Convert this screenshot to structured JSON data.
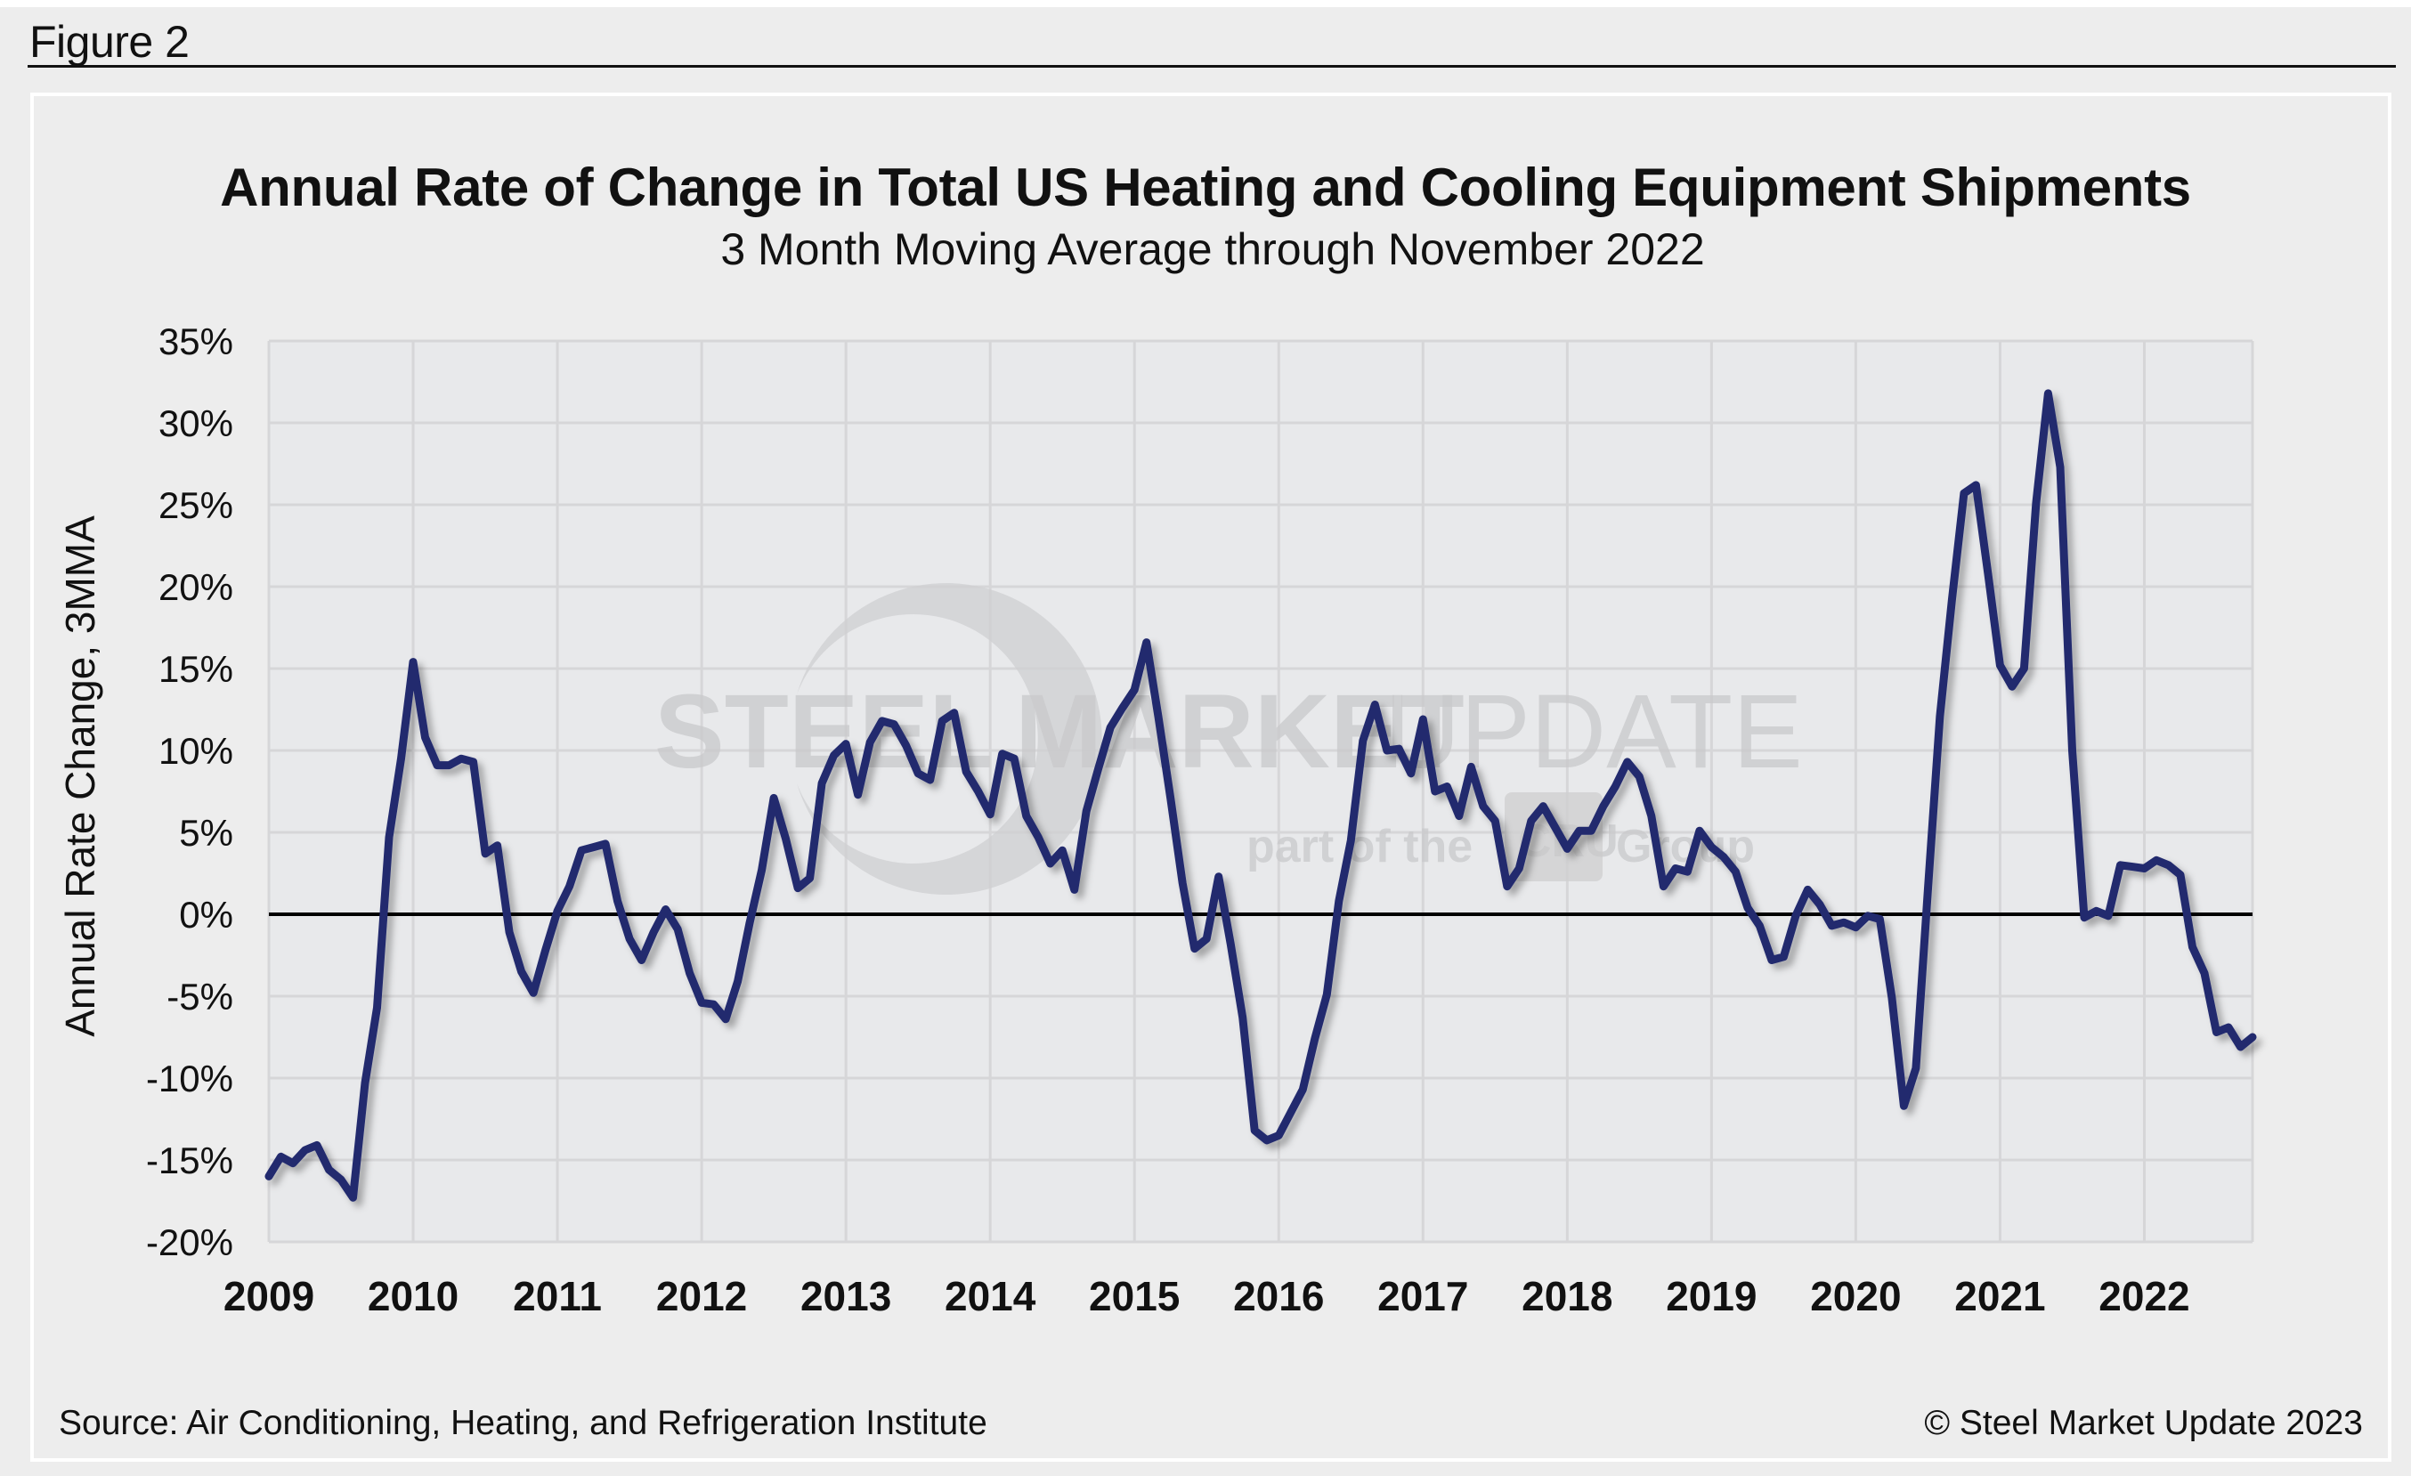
{
  "figure_label": "Figure 2",
  "watermark": {
    "brand_bold": "STEEL",
    "brand_bold2": "MARKET",
    "brand_light": "UPDATE",
    "tagline_pre": "part of the",
    "tagline_logo": "CRU",
    "tagline_post": "Group"
  },
  "footer": {
    "source": "Source: Air Conditioning, Heating, and Refrigeration Institute",
    "copyright": "© Steel Market Update 2023"
  },
  "colors": {
    "line": "#222a6e",
    "zero_line": "#000000",
    "grid": "#d6d6d8",
    "plot_bg": "#e8e9eb"
  },
  "chart_data": {
    "type": "line",
    "title": "Annual Rate of Change in Total US Heating and Cooling Equipment Shipments",
    "subtitle": "3 Month Moving Average through November 2022",
    "xlabel": "",
    "ylabel": "Annual Rate Change, 3MMA",
    "frequency": "monthly",
    "ylim": [
      -20,
      35
    ],
    "yticks": [
      35,
      30,
      25,
      20,
      15,
      10,
      5,
      0,
      -5,
      -10,
      -15,
      -20
    ],
    "ytick_labels": [
      "35%",
      "30%",
      "25%",
      "20%",
      "15%",
      "10%",
      "5%",
      "0%",
      "-5%",
      "-10%",
      "-15%",
      "-20%"
    ],
    "xlim": [
      0,
      165
    ],
    "xticks": [
      0,
      12,
      24,
      36,
      48,
      60,
      72,
      84,
      96,
      108,
      120,
      132,
      144,
      156
    ],
    "xtick_labels": [
      "2009",
      "2010",
      "2011",
      "2012",
      "2013",
      "2014",
      "2015",
      "2016",
      "2017",
      "2018",
      "2019",
      "2020",
      "2021",
      "2022"
    ],
    "grid": true,
    "reference_line": 0,
    "legend": "none",
    "series": [
      {
        "name": "Annual Rate of Change, 3MMA",
        "values": [
          -16.0,
          -14.8,
          -15.2,
          -14.4,
          -14.1,
          -15.6,
          -16.2,
          -17.3,
          -10.3,
          -5.7,
          4.7,
          9.5,
          15.4,
          10.8,
          9.1,
          9.1,
          9.5,
          9.3,
          3.7,
          4.2,
          -1.1,
          -3.5,
          -4.8,
          -2.2,
          0.2,
          1.7,
          3.9,
          4.1,
          4.3,
          0.8,
          -1.5,
          -2.8,
          -1.1,
          0.3,
          -0.9,
          -3.6,
          -5.4,
          -5.5,
          -6.4,
          -4.1,
          -0.5,
          2.7,
          7.1,
          4.6,
          1.6,
          2.2,
          8.0,
          9.7,
          10.4,
          7.3,
          10.5,
          11.8,
          11.6,
          10.3,
          8.6,
          8.2,
          11.8,
          12.3,
          8.7,
          7.5,
          6.1,
          9.8,
          9.5,
          6.0,
          4.7,
          3.1,
          3.9,
          1.5,
          6.3,
          8.9,
          11.4,
          12.6,
          13.7,
          16.6,
          12.0,
          7.1,
          1.9,
          -2.1,
          -1.5,
          2.3,
          -1.8,
          -6.3,
          -13.2,
          -13.8,
          -13.5,
          -12.1,
          -10.7,
          -7.6,
          -4.9,
          0.8,
          4.5,
          10.6,
          12.8,
          10.0,
          10.1,
          8.6,
          11.9,
          7.5,
          7.8,
          6.0,
          9.0,
          6.6,
          5.7,
          1.7,
          2.8,
          5.7,
          6.6,
          5.3,
          4.0,
          5.1,
          5.1,
          6.6,
          7.8,
          9.3,
          8.4,
          6.0,
          1.7,
          2.8,
          2.6,
          5.1,
          4.1,
          3.5,
          2.6,
          0.4,
          -0.7,
          -2.8,
          -2.6,
          -0.1,
          1.5,
          0.6,
          -0.7,
          -0.5,
          -0.8,
          -0.1,
          -0.3,
          -5.1,
          -11.7,
          -9.4,
          1.5,
          12.1,
          19.2,
          25.7,
          26.2,
          20.8,
          15.2,
          13.9,
          15.0,
          25.1,
          31.8,
          27.3,
          10.0,
          -0.2,
          0.2,
          -0.1,
          3.0,
          2.9,
          2.8,
          3.3,
          3.0,
          2.4,
          -2.0,
          -3.6,
          -7.2,
          -6.9,
          -8.1,
          -7.5
        ]
      }
    ]
  }
}
